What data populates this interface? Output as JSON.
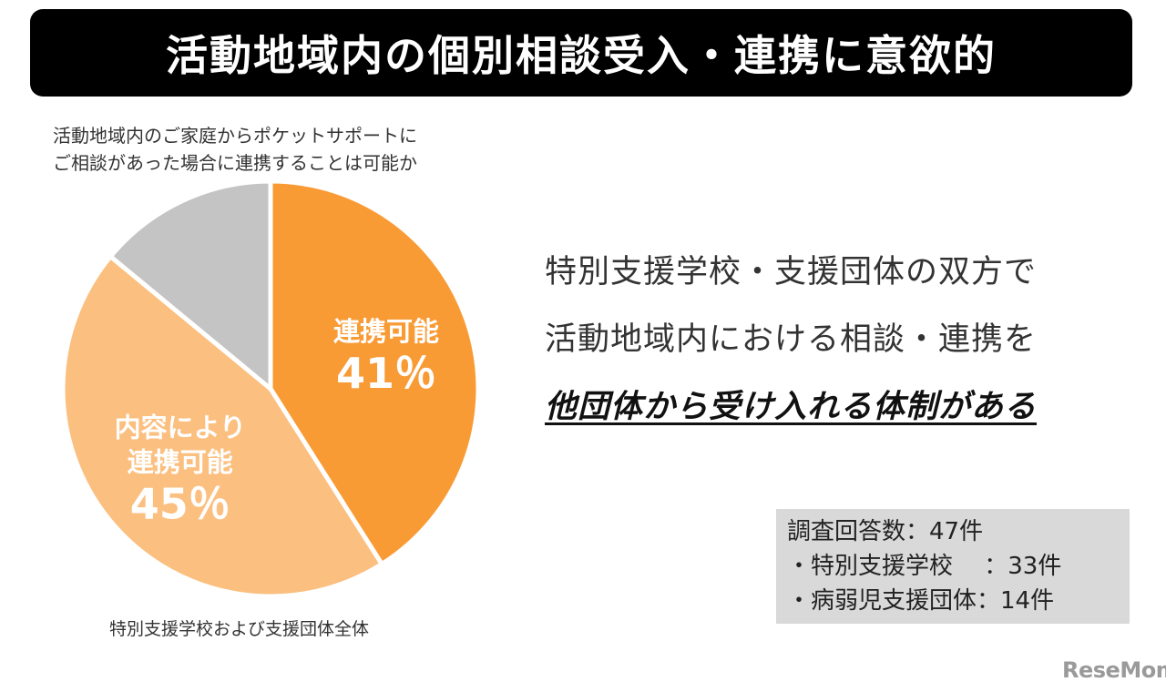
{
  "header": {
    "title": "活動地域内の個別相談受入・連携に意欲的"
  },
  "question": {
    "line1": "活動地域内のご家庭からポケットサポートに",
    "line2": "ご相談があった場合に連携することは可能か"
  },
  "chart_data": {
    "type": "pie",
    "slices": [
      {
        "label": "連携可能",
        "value": 41,
        "display": "41％",
        "color": "#f99b35",
        "text_color": "#ffffff"
      },
      {
        "label": "内容により\n連携可能",
        "value": 45,
        "display": "45％",
        "color": "#fbbf7f",
        "text_color": "#ffffff"
      },
      {
        "label": "",
        "value": 14,
        "display": "",
        "color": "#c4c4c4",
        "text_color": "#ffffff"
      }
    ]
  },
  "caption": "特別支援学校および支援団体全体",
  "headline": {
    "line1": "特別支援学校・支援団体の双方で",
    "line2": "活動地域内における相談・連携を",
    "line3": "他団体から受け入れる体制がある"
  },
  "stats": {
    "line1": "調査回答数：47件",
    "line2": "・特別支援学校　 ：33件",
    "line3": "・病弱児支援団体：14件"
  },
  "logo": "ReseMom"
}
